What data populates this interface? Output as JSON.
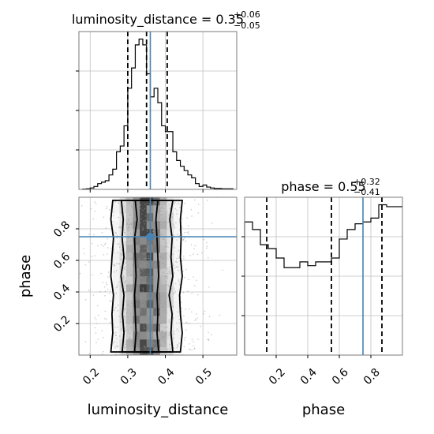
{
  "chart_data": [
    {
      "type": "histogram",
      "panel": "top-left",
      "parameter": "luminosity_distance",
      "title": {
        "base": "luminosity_distance = 0.35",
        "upper": "+0.06",
        "lower": "−0.05"
      },
      "xlim": [
        0.17,
        0.59
      ],
      "xticks": [
        0.2,
        0.3,
        0.4,
        0.5
      ],
      "bin_edges": [
        0.18,
        0.19,
        0.2,
        0.21,
        0.22,
        0.23,
        0.24,
        0.25,
        0.26,
        0.27,
        0.28,
        0.29,
        0.3,
        0.31,
        0.32,
        0.33,
        0.34,
        0.35,
        0.36,
        0.37,
        0.38,
        0.39,
        0.4,
        0.41,
        0.42,
        0.43,
        0.44,
        0.45,
        0.46,
        0.47,
        0.48,
        0.49,
        0.5,
        0.51,
        0.52,
        0.53,
        0.54,
        0.55,
        0.56,
        0.57,
        0.58
      ],
      "counts": [
        0.1,
        0.2,
        0.5,
        1,
        2,
        2.5,
        3,
        5,
        7,
        13,
        15,
        22,
        35,
        42,
        50,
        52,
        50,
        40,
        32,
        35,
        30,
        22,
        20,
        20,
        13,
        10,
        8,
        6.5,
        5,
        4,
        2,
        1,
        1.5,
        0.8,
        0.5,
        0.3,
        0.3,
        0.2,
        0.2,
        0.2
      ],
      "quantiles": [
        0.3,
        0.35,
        0.405
      ],
      "truth": 0.36,
      "grid": true
    },
    {
      "type": "histogram",
      "panel": "bottom-right",
      "parameter": "phase",
      "title": {
        "base": "phase = 0.55",
        "upper": "+0.32",
        "lower": "−0.41"
      },
      "xlim": [
        0.0,
        1.0
      ],
      "xticks": [
        0.2,
        0.4,
        0.6,
        0.8
      ],
      "xlabel": "phase",
      "bin_edges": [
        0.0,
        0.05,
        0.1,
        0.15,
        0.2,
        0.25,
        0.3,
        0.35,
        0.4,
        0.45,
        0.5,
        0.55,
        0.6,
        0.65,
        0.7,
        0.75,
        0.8,
        0.85,
        0.9,
        0.95,
        1.0
      ],
      "counts": [
        70,
        66,
        58,
        56,
        51,
        46,
        46,
        49,
        47,
        49,
        49,
        51,
        61,
        66,
        69,
        70,
        72,
        79,
        78,
        78
      ],
      "quantiles": [
        0.14,
        0.55,
        0.87
      ],
      "truth": 0.75,
      "grid": true
    },
    {
      "type": "scatter",
      "panel": "bottom-left",
      "description_of": "2D posterior with density contours",
      "xlim": [
        0.17,
        0.59
      ],
      "ylim": [
        0.0,
        1.0
      ],
      "xticks": [
        0.2,
        0.3,
        0.4,
        0.5
      ],
      "yticks": [
        0.2,
        0.4,
        0.6,
        0.8
      ],
      "xlabel": "luminosity_distance",
      "ylabel": "phase",
      "truth": {
        "x": 0.36,
        "y": 0.75
      },
      "x_center": 0.35,
      "x_spread": 0.055,
      "contour_levels": [
        {
          "x": [
            0.318,
            0.322,
            0.32,
            0.318,
            0.322,
            0.32,
            0.318,
            0.325,
            0.32
          ],
          "x2": [
            0.382,
            0.378,
            0.38,
            0.378,
            0.382,
            0.38,
            0.378,
            0.375,
            0.38
          ]
        },
        {
          "x": [
            0.285,
            0.29,
            0.286,
            0.29,
            0.282,
            0.29,
            0.285,
            0.288,
            0.283
          ],
          "x2": [
            0.42,
            0.415,
            0.418,
            0.41,
            0.42,
            0.415,
            0.418,
            0.412,
            0.42
          ]
        },
        {
          "x": [
            0.255,
            0.26,
            0.258,
            0.262,
            0.255,
            0.258,
            0.262,
            0.255,
            0.26
          ],
          "x2": [
            0.44,
            0.445,
            0.44,
            0.438,
            0.445,
            0.44,
            0.442,
            0.44,
            0.445
          ]
        }
      ],
      "grid": true
    }
  ]
}
